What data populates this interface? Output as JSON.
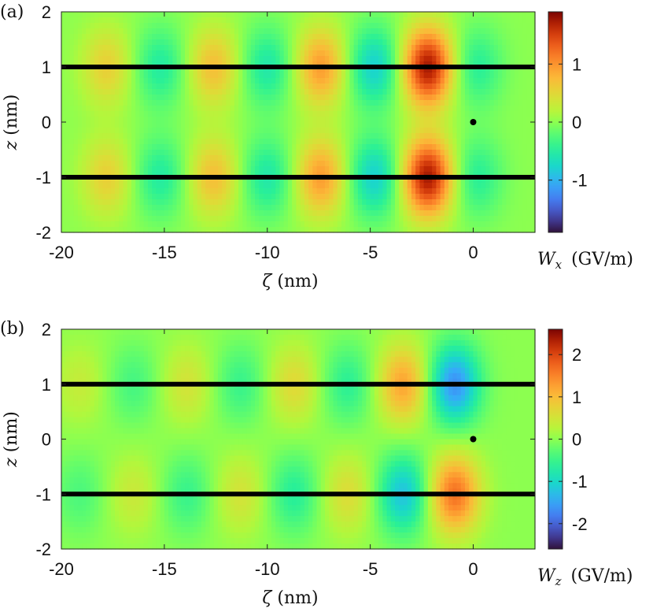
{
  "chart_data": [
    {
      "type": "heatmap",
      "panel_label": "(a)",
      "xlabel_symbol": "ζ",
      "xlabel_unit": "(nm)",
      "ylabel_symbol": "z",
      "ylabel_unit": "(nm)",
      "xlim": [
        -20,
        3
      ],
      "ylim": [
        -2,
        2
      ],
      "xticks": [
        -20,
        -15,
        -10,
        -5,
        0
      ],
      "xtick_labels": [
        "-20",
        "-15",
        "-10",
        "-5",
        "0"
      ],
      "yticks": [
        2,
        1,
        0,
        -1,
        -2
      ],
      "ytick_labels": [
        "2",
        "1",
        "0",
        "-1",
        "-2"
      ],
      "colorbar_label_symbol": "W",
      "colorbar_label_sub": "x",
      "colorbar_label_unit": "(GV/m)",
      "colorbar_range": [
        -1.9,
        1.9
      ],
      "colorbar_ticks": [
        1,
        0,
        -1
      ],
      "colorbar_tick_labels": [
        "1",
        "0",
        "-1"
      ],
      "boundary_lines_z": [
        1,
        -1
      ],
      "marker_point": {
        "zeta": 0,
        "z": 0
      },
      "field": {
        "symmetry": "even",
        "peaks": [
          {
            "zeta": -2.2,
            "amplitude": 1.85
          },
          {
            "zeta": 0.2,
            "amplitude": -0.5
          },
          {
            "zeta": -4.8,
            "amplitude": -0.85
          },
          {
            "zeta": -7.4,
            "amplitude": 1.0
          },
          {
            "zeta": -10.0,
            "amplitude": -0.6
          },
          {
            "zeta": -12.6,
            "amplitude": 0.75
          },
          {
            "zeta": -15.2,
            "amplitude": -0.55
          },
          {
            "zeta": -17.8,
            "amplitude": 0.6
          }
        ]
      }
    },
    {
      "type": "heatmap",
      "panel_label": "(b)",
      "xlabel_symbol": "ζ",
      "xlabel_unit": "(nm)",
      "ylabel_symbol": "z",
      "ylabel_unit": "(nm)",
      "xlim": [
        -20,
        3
      ],
      "ylim": [
        -2,
        2
      ],
      "xticks": [
        -20,
        -15,
        -10,
        -5,
        0
      ],
      "xtick_labels": [
        "-20",
        "-15",
        "-10",
        "-5",
        "0"
      ],
      "yticks": [
        2,
        1,
        0,
        -1,
        -2
      ],
      "ytick_labels": [
        "2",
        "1",
        "0",
        "-1",
        "-2"
      ],
      "colorbar_label_symbol": "W",
      "colorbar_label_sub": "z",
      "colorbar_label_unit": "(GV/m)",
      "colorbar_range": [
        -2.6,
        2.6
      ],
      "colorbar_ticks": [
        2,
        1,
        0,
        -1,
        -2
      ],
      "colorbar_tick_labels": [
        "2",
        "1",
        "0",
        "-1",
        "-2"
      ],
      "boundary_lines_z": [
        1,
        -1
      ],
      "marker_point": {
        "zeta": 0,
        "z": 0
      },
      "field": {
        "symmetry": "odd",
        "peaks": [
          {
            "zeta": -0.9,
            "amplitude": -1.75
          },
          {
            "zeta": -3.4,
            "amplitude": 1.3
          },
          {
            "zeta": -6.1,
            "amplitude": -0.65
          },
          {
            "zeta": -8.7,
            "amplitude": 0.7
          },
          {
            "zeta": -11.3,
            "amplitude": -0.55
          },
          {
            "zeta": -13.9,
            "amplitude": 0.55
          },
          {
            "zeta": -16.5,
            "amplitude": -0.45
          },
          {
            "zeta": -19.1,
            "amplitude": 0.4
          }
        ]
      }
    }
  ]
}
